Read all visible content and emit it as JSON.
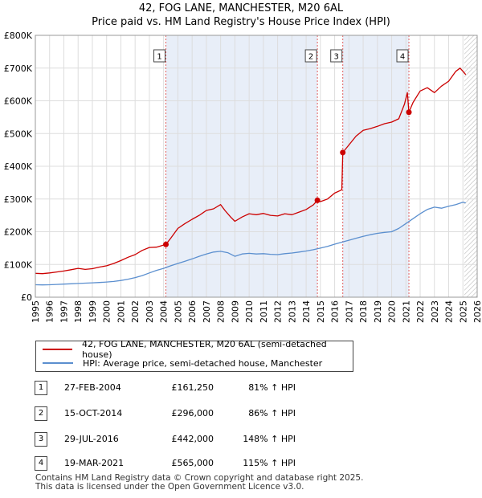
{
  "title": "42, FOG LANE, MANCHESTER, M20 6AL",
  "subtitle": "Price paid vs. HM Land Registry's House Price Index (HPI)",
  "colors": {
    "property": "#cc0000",
    "hpi": "#5b8fcf",
    "shade": "#e8eef8",
    "grid": "#dddddd",
    "marker_line": "#e06060"
  },
  "chart_data": {
    "type": "line",
    "title": "42, FOG LANE, MANCHESTER, M20 6AL",
    "subtitle": "Price paid vs. HM Land Registry's House Price Index (HPI)",
    "xlabel": "",
    "ylabel": "",
    "xlim": [
      1995,
      2026
    ],
    "ylim": [
      0,
      800000
    ],
    "grid": true,
    "y_ticks": [
      0,
      100000,
      200000,
      300000,
      400000,
      500000,
      600000,
      700000,
      800000
    ],
    "y_tick_labels": [
      "£0",
      "£100K",
      "£200K",
      "£300K",
      "£400K",
      "£500K",
      "£600K",
      "£700K",
      "£800K"
    ],
    "x_ticks": [
      1995,
      1996,
      1997,
      1998,
      1999,
      2000,
      2001,
      2002,
      2003,
      2004,
      2005,
      2006,
      2007,
      2008,
      2009,
      2010,
      2011,
      2012,
      2013,
      2014,
      2015,
      2016,
      2017,
      2018,
      2019,
      2020,
      2021,
      2022,
      2023,
      2024,
      2025,
      2026
    ],
    "x_tick_labels": [
      "1995",
      "1996",
      "1997",
      "1998",
      "1999",
      "2000",
      "2001",
      "2002",
      "2003",
      "2004",
      "2005",
      "2006",
      "2007",
      "2008",
      "2009",
      "2010",
      "2011",
      "2012",
      "2013",
      "2014",
      "2015",
      "2016",
      "2017",
      "2018",
      "2019",
      "2020",
      "2021",
      "2022",
      "2023",
      "2024",
      "2025",
      "2026"
    ],
    "shaded_ranges": [
      [
        2004.16,
        2014.79
      ],
      [
        2016.57,
        2021.21
      ]
    ],
    "future_hatch_from": 2025.1,
    "series": [
      {
        "name": "42, FOG LANE, MANCHESTER, M20 6AL (semi-detached house)",
        "color": "#cc0000",
        "x": [
          1995,
          1995.5,
          1996,
          1996.5,
          1997,
          1997.5,
          1998,
          1998.5,
          1999,
          1999.5,
          2000,
          2000.5,
          2001,
          2001.5,
          2002,
          2002.5,
          2003,
          2003.5,
          2004.16,
          2004.16,
          2004.5,
          2005,
          2005.5,
          2006,
          2006.5,
          2007,
          2007.5,
          2008,
          2008.3,
          2008.7,
          2009,
          2009.5,
          2010,
          2010.5,
          2011,
          2011.5,
          2012,
          2012.5,
          2013,
          2013.5,
          2014,
          2014.5,
          2014.79,
          2014.79,
          2015,
          2015.5,
          2016,
          2016.5,
          2016.57,
          2016.57,
          2017,
          2017.5,
          2018,
          2018.5,
          2019,
          2019.5,
          2020,
          2020.5,
          2020.9,
          2021.1,
          2021.21,
          2021.21,
          2021.5,
          2022,
          2022.5,
          2023,
          2023.5,
          2024,
          2024.5,
          2024.8,
          2025,
          2025.2
        ],
        "values": [
          73000,
          72000,
          74000,
          77000,
          80000,
          84000,
          88000,
          85000,
          87000,
          92000,
          96000,
          103000,
          112000,
          122000,
          130000,
          143000,
          152000,
          153000,
          161250,
          161250,
          180000,
          210000,
          225000,
          238000,
          250000,
          265000,
          270000,
          283000,
          265000,
          245000,
          232000,
          245000,
          255000,
          252000,
          256000,
          250000,
          248000,
          255000,
          252000,
          260000,
          268000,
          282000,
          296000,
          296000,
          292000,
          300000,
          318000,
          328000,
          442000,
          442000,
          465000,
          492000,
          510000,
          515000,
          522000,
          530000,
          535000,
          545000,
          590000,
          625000,
          565000,
          565000,
          595000,
          630000,
          640000,
          625000,
          645000,
          660000,
          690000,
          700000,
          690000,
          680000
        ]
      },
      {
        "name": "HPI: Average price, semi-detached house, Manchester",
        "color": "#5b8fcf",
        "x": [
          1995,
          1995.5,
          1996,
          1996.5,
          1997,
          1997.5,
          1998,
          1998.5,
          1999,
          1999.5,
          2000,
          2000.5,
          2001,
          2001.5,
          2002,
          2002.5,
          2003,
          2003.5,
          2004,
          2004.5,
          2005,
          2005.5,
          2006,
          2006.5,
          2007,
          2007.5,
          2008,
          2008.5,
          2009,
          2009.5,
          2010,
          2010.5,
          2011,
          2011.5,
          2012,
          2012.5,
          2013,
          2013.5,
          2014,
          2014.5,
          2015,
          2015.5,
          2016,
          2016.5,
          2017,
          2017.5,
          2018,
          2018.5,
          2019,
          2019.5,
          2020,
          2020.5,
          2021,
          2021.5,
          2022,
          2022.5,
          2023,
          2023.5,
          2024,
          2024.5,
          2025,
          2025.2
        ],
        "values": [
          38000,
          37500,
          38000,
          39000,
          40000,
          41000,
          42000,
          43000,
          44000,
          45000,
          46500,
          48000,
          51000,
          55000,
          60000,
          66000,
          74000,
          82000,
          88000,
          96000,
          103000,
          110000,
          117000,
          125000,
          132000,
          138000,
          140000,
          136000,
          125000,
          132000,
          134000,
          132000,
          133000,
          131000,
          130000,
          133000,
          135000,
          138000,
          141000,
          145000,
          150000,
          155000,
          162000,
          168000,
          174000,
          180000,
          186000,
          191000,
          195000,
          198000,
          200000,
          210000,
          225000,
          240000,
          255000,
          268000,
          275000,
          272000,
          278000,
          283000,
          290000,
          288000
        ]
      }
    ],
    "sale_markers": [
      {
        "label": "1",
        "x": 2004.16,
        "value": 161250
      },
      {
        "label": "2",
        "x": 2014.79,
        "value": 296000
      },
      {
        "label": "3",
        "x": 2016.57,
        "value": 442000
      },
      {
        "label": "4",
        "x": 2021.21,
        "value": 565000
      }
    ]
  },
  "legend": {
    "property_label": "42, FOG LANE, MANCHESTER, M20 6AL (semi-detached house)",
    "hpi_label": "HPI: Average price, semi-detached house, Manchester"
  },
  "sales": [
    {
      "num": "1",
      "date": "27-FEB-2004",
      "price": "£161,250",
      "pct": "81% ↑ HPI"
    },
    {
      "num": "2",
      "date": "15-OCT-2014",
      "price": "£296,000",
      "pct": "86% ↑ HPI"
    },
    {
      "num": "3",
      "date": "29-JUL-2016",
      "price": "£442,000",
      "pct": "148% ↑ HPI"
    },
    {
      "num": "4",
      "date": "19-MAR-2021",
      "price": "£565,000",
      "pct": "115% ↑ HPI"
    }
  ],
  "footer": {
    "line1": "Contains HM Land Registry data © Crown copyright and database right 2025.",
    "line2": "This data is licensed under the Open Government Licence v3.0."
  }
}
